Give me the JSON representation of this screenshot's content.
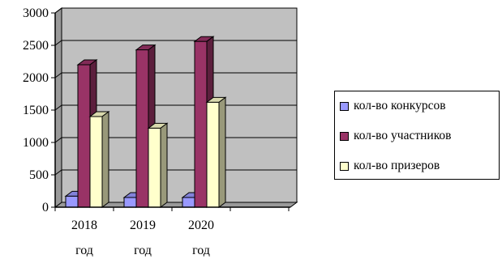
{
  "chart_data": {
    "type": "bar",
    "categories": [
      "2018 год",
      "2019 год",
      "2020 год"
    ],
    "category_lines": [
      [
        "2018",
        "год"
      ],
      [
        "2019",
        "год"
      ],
      [
        "2020",
        "год"
      ]
    ],
    "series": [
      {
        "name": "кол-во конкурсов",
        "values": [
          170,
          150,
          150
        ],
        "color": "#9999ff"
      },
      {
        "name": "кол-во участников",
        "values": [
          2200,
          2430,
          2560
        ],
        "color": "#993366"
      },
      {
        "name": "кол-во призеров",
        "values": [
          1400,
          1220,
          1620
        ],
        "color": "#ffffcc"
      }
    ],
    "yticks": [
      0,
      500,
      1000,
      1500,
      2000,
      2500,
      3000
    ],
    "ylim": [
      0,
      3000
    ],
    "title": "",
    "xlabel": "",
    "ylabel": "",
    "grid": true,
    "plot_background": "#c0c0c0",
    "legend_position": "right"
  }
}
